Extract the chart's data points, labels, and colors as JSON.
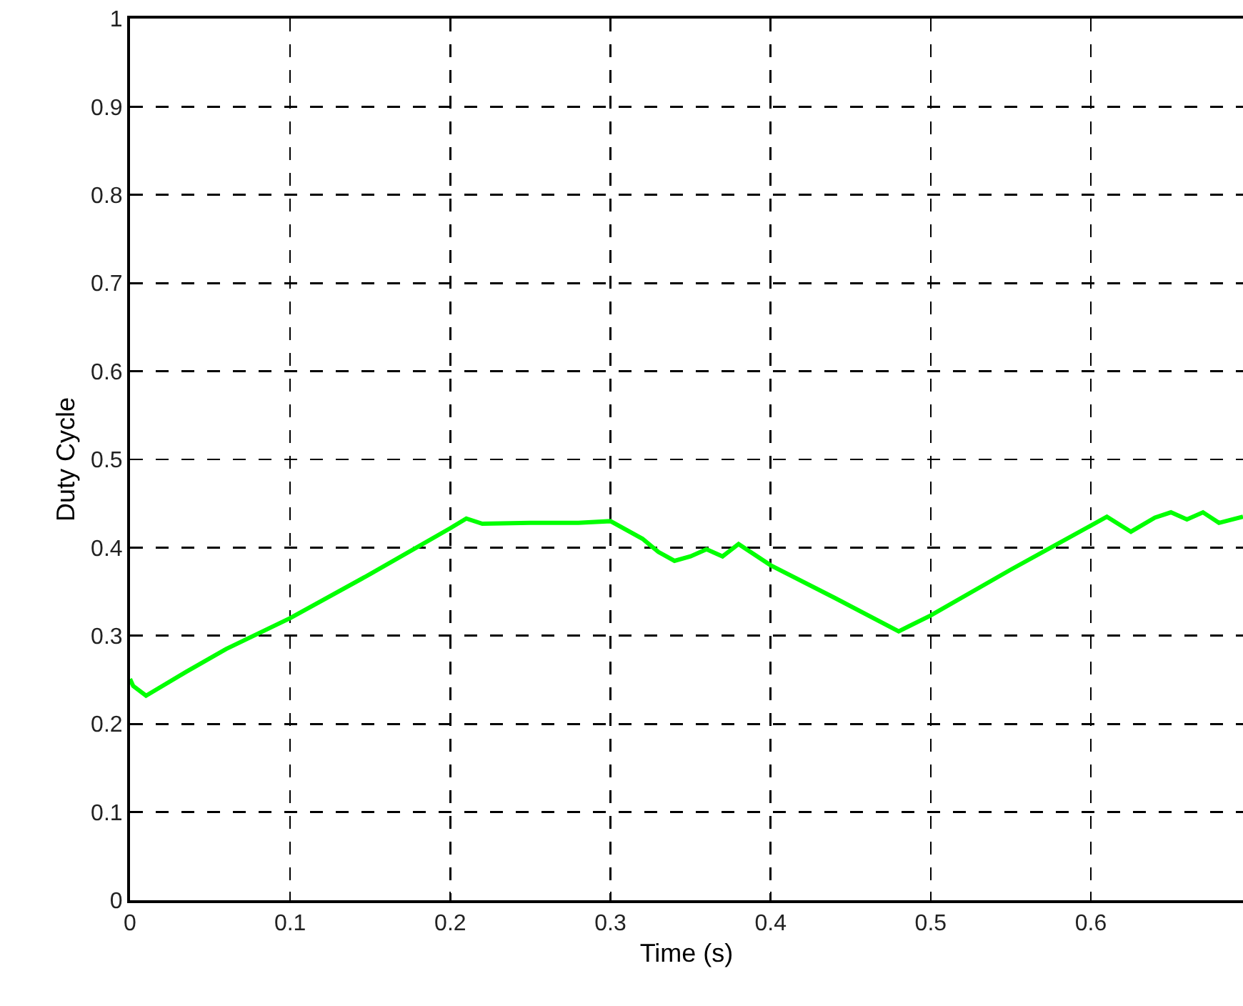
{
  "chart_data": {
    "type": "line",
    "xlabel": "Time (s)",
    "ylabel": "Duty Cycle",
    "xlim": [
      0,
      0.695
    ],
    "ylim": [
      0,
      1
    ],
    "xticks": [
      0,
      0.1,
      0.2,
      0.3,
      0.4,
      0.5,
      0.6
    ],
    "yticks": [
      0,
      0.1,
      0.2,
      0.3,
      0.4,
      0.5,
      0.6,
      0.7,
      0.8,
      0.9,
      1
    ],
    "grid": true,
    "series": [
      {
        "color": "#00ff00",
        "x": [
          0,
          0.002,
          0.01,
          0.035,
          0.06,
          0.1,
          0.15,
          0.2,
          0.21,
          0.22,
          0.25,
          0.28,
          0.3,
          0.32,
          0.33,
          0.34,
          0.35,
          0.36,
          0.37,
          0.38,
          0.4,
          0.44,
          0.48,
          0.5,
          0.55,
          0.6,
          0.61,
          0.625,
          0.64,
          0.65,
          0.66,
          0.67,
          0.68,
          0.695
        ],
        "values": [
          0.251,
          0.243,
          0.232,
          0.259,
          0.285,
          0.32,
          0.37,
          0.422,
          0.433,
          0.427,
          0.428,
          0.428,
          0.43,
          0.41,
          0.395,
          0.385,
          0.39,
          0.398,
          0.39,
          0.404,
          0.38,
          0.343,
          0.305,
          0.323,
          0.375,
          0.425,
          0.435,
          0.418,
          0.434,
          0.44,
          0.432,
          0.44,
          0.428,
          0.435
        ]
      }
    ]
  }
}
